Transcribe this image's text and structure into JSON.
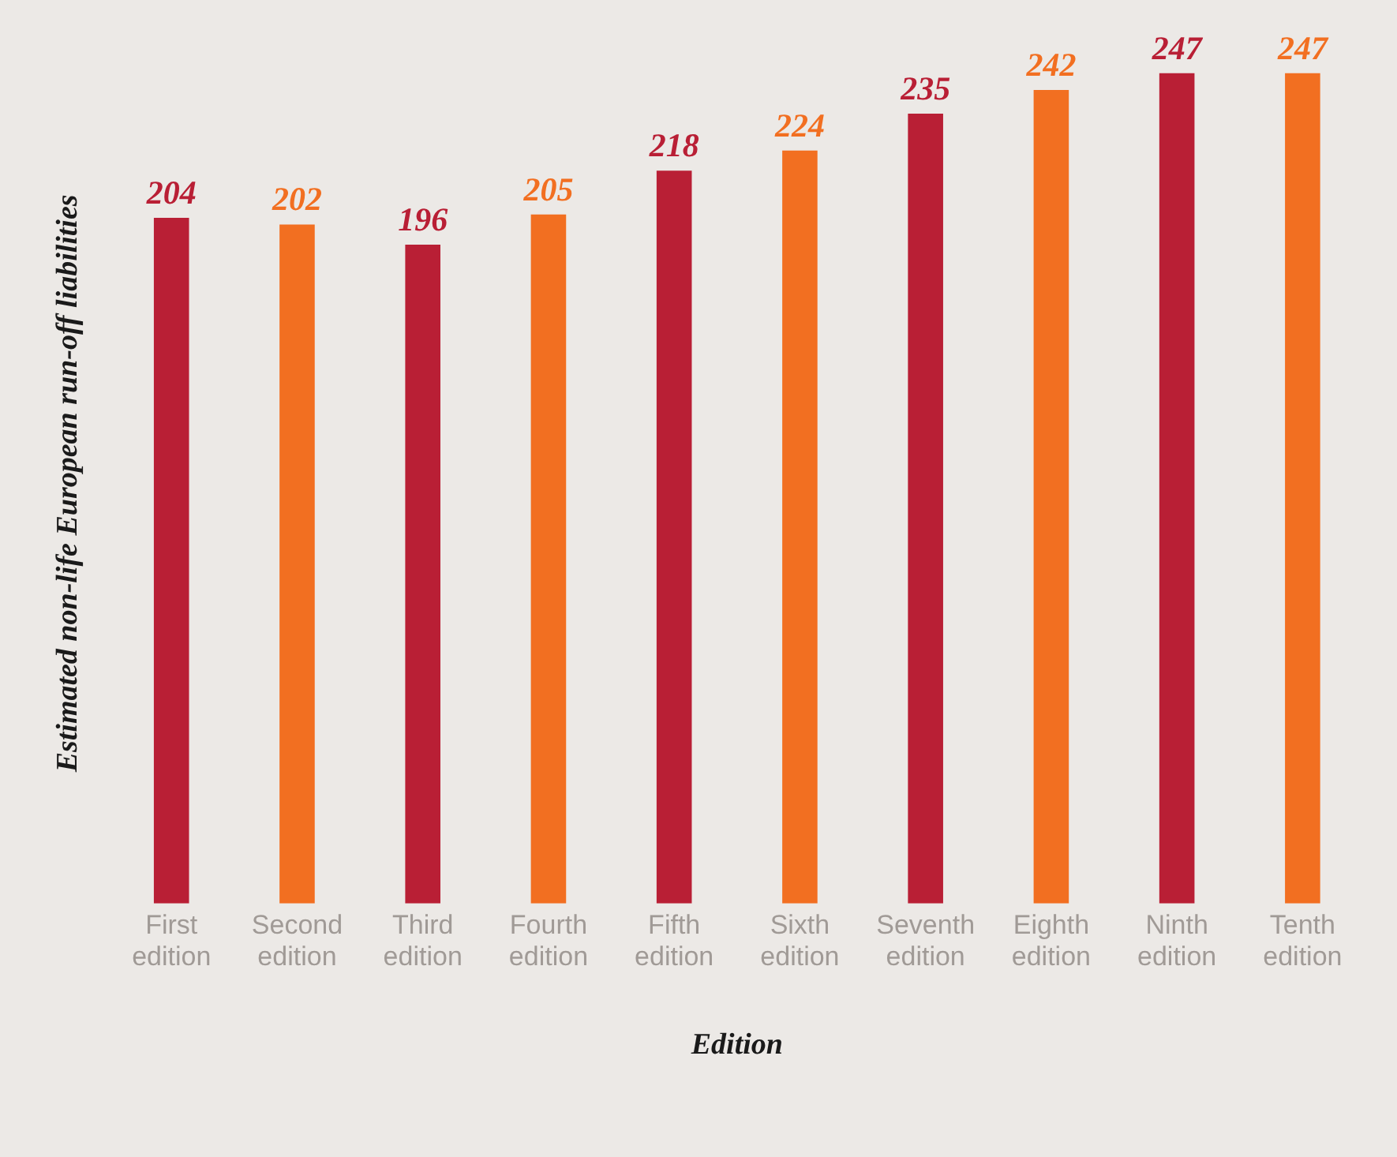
{
  "chart_data": {
    "type": "bar",
    "xlabel": "Edition",
    "ylabel": "Estimated non-life European run-off liabilities",
    "categories": [
      "First edition",
      "Second edition",
      "Third edition",
      "Fourth edition",
      "Fifth edition",
      "Sixth edition",
      "Seventh edition",
      "Eighth edition",
      "Ninth edition",
      "Tenth edition"
    ],
    "values": [
      204,
      202,
      196,
      205,
      218,
      224,
      235,
      242,
      247,
      247
    ],
    "colors": [
      "#b91f35",
      "#f26f21",
      "#b91f35",
      "#f26f21",
      "#b91f35",
      "#f26f21",
      "#b91f35",
      "#f26f21",
      "#b91f35",
      "#f26f21"
    ],
    "data_labels": true,
    "grid": false,
    "legend": false,
    "tick_labels": "x"
  }
}
